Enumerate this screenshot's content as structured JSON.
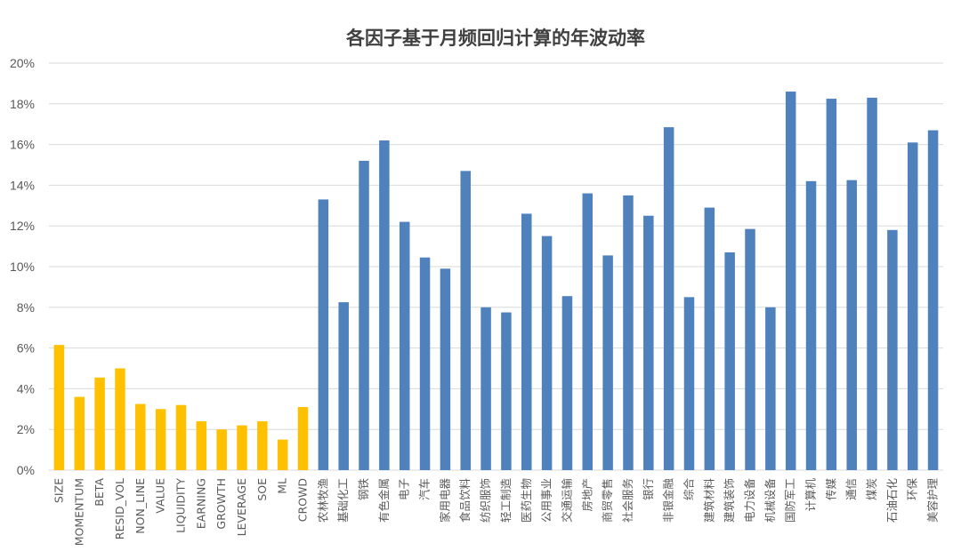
{
  "chart_data": {
    "type": "bar",
    "title": "各因子基于月频回归计算的年波动率",
    "xlabel": "",
    "ylabel": "",
    "ylim": [
      0,
      20
    ],
    "yticks": [
      "0%",
      "2%",
      "4%",
      "6%",
      "8%",
      "10%",
      "12%",
      "14%",
      "16%",
      "18%",
      "20%"
    ],
    "grid": true,
    "legend": "none",
    "colors": {
      "style": "#FFC000",
      "industry": "#4F81BD",
      "grid": "#D9D9D9",
      "axis": "#D9D9D9"
    },
    "categories": [
      "SIZE",
      "MOMENTUM",
      "BETA",
      "RESID_VOL",
      "NON_LINE",
      "VALUE",
      "LIQUIDITY",
      "EARNING",
      "GROWTH",
      "LEVERAGE",
      "SOE",
      "ML",
      "CROWD",
      "农林牧渔",
      "基础化工",
      "钢铁",
      "有色金属",
      "电子",
      "汽车",
      "家用电器",
      "食品饮料",
      "纺织服饰",
      "轻工制造",
      "医药生物",
      "公用事业",
      "交通运输",
      "房地产",
      "商贸零售",
      "社会服务",
      "银行",
      "非银金融",
      "综合",
      "建筑材料",
      "建筑装饰",
      "电力设备",
      "机械设备",
      "国防军工",
      "计算机",
      "传媒",
      "通信",
      "煤炭",
      "石油石化",
      "环保",
      "美容护理"
    ],
    "values": [
      6.15,
      3.6,
      4.55,
      5.0,
      3.25,
      3.0,
      3.2,
      2.4,
      2.0,
      2.2,
      2.4,
      1.5,
      3.1,
      13.3,
      8.25,
      15.2,
      16.2,
      12.2,
      10.45,
      9.9,
      14.7,
      8.0,
      7.75,
      12.6,
      11.5,
      8.55,
      13.6,
      10.55,
      13.5,
      12.5,
      16.85,
      8.5,
      12.9,
      10.7,
      11.85,
      8.0,
      18.6,
      14.2,
      18.25,
      14.25,
      18.3,
      11.8,
      16.1,
      16.7
    ],
    "groups": {
      "style_count": 13
    }
  }
}
